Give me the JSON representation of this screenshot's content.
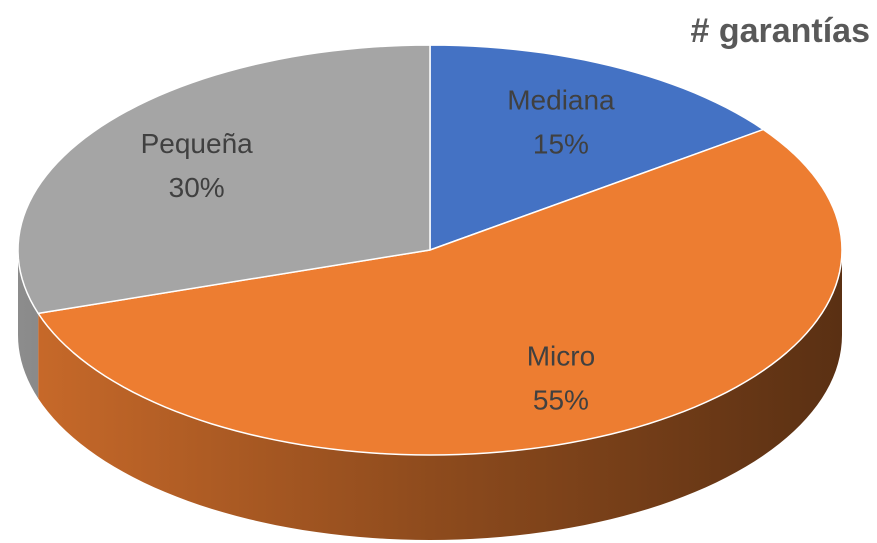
{
  "chart_data": {
    "type": "pie",
    "title": "# garantías",
    "categories": [
      "Mediana",
      "Micro",
      "Pequeña"
    ],
    "values": [
      15,
      55,
      30
    ],
    "value_labels": [
      "15%",
      "55%",
      "30%"
    ],
    "colors": [
      "#4472c4",
      "#ed7d31",
      "#a5a5a5"
    ]
  }
}
